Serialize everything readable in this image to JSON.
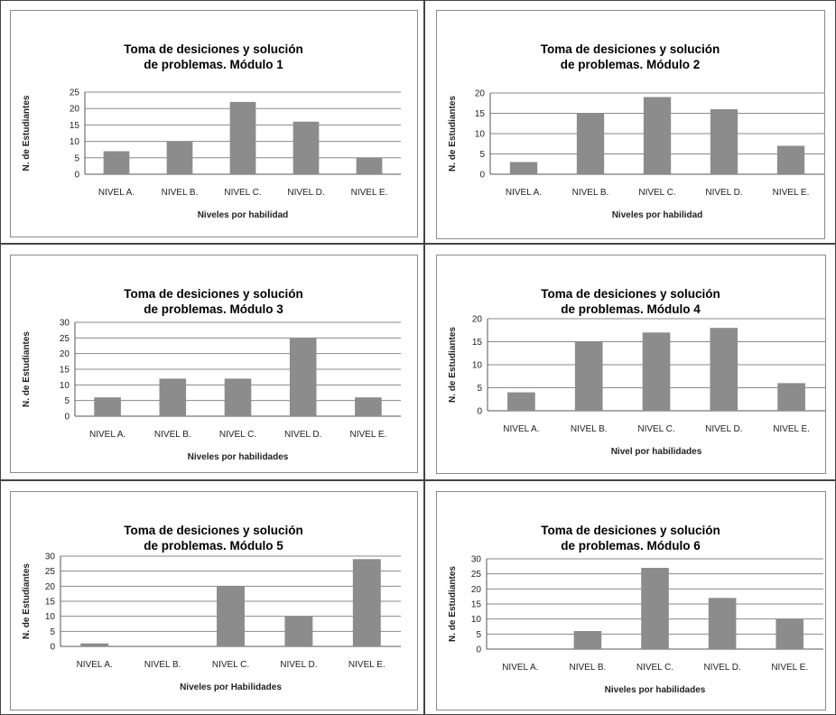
{
  "chart_data": [
    {
      "type": "bar",
      "title": [
        "Toma de desiciones y solución",
        "de problemas.  Módulo 1"
      ],
      "ylabel": "N. de Estudiantes",
      "xlabel": "Niveles por habilidad",
      "categories": [
        "NIVEL A.",
        "NIVEL B.",
        "NIVEL C.",
        "NIVEL D.",
        "NIVEL E."
      ],
      "values": [
        7,
        10,
        22,
        16,
        5
      ],
      "ylim": [
        0,
        25
      ],
      "yticks": [
        0,
        5,
        10,
        15,
        20,
        25
      ],
      "grid": true,
      "bar_color": "#8c8c8c"
    },
    {
      "type": "bar",
      "title": [
        "Toma de desiciones y solución",
        "de problemas. Módulo 2"
      ],
      "ylabel": "N. de Estudiantes",
      "xlabel": "Niveles por habilidad",
      "categories": [
        "NIVEL A.",
        "NIVEL B.",
        "NIVEL C.",
        "NIVEL D.",
        "NIVEL E."
      ],
      "values": [
        3,
        15,
        19,
        16,
        7
      ],
      "ylim": [
        0,
        20
      ],
      "yticks": [
        0,
        5,
        10,
        15,
        20
      ],
      "grid": true,
      "bar_color": "#8c8c8c"
    },
    {
      "type": "bar",
      "title": [
        "Toma de desiciones y solución",
        "de problemas. Módulo 3"
      ],
      "ylabel": "N. de Estudiantes",
      "xlabel": "Niveles por habilidades",
      "categories": [
        "NIVEL A.",
        "NIVEL B.",
        "NIVEL C.",
        "NIVEL D.",
        "NIVEL E."
      ],
      "values": [
        6,
        12,
        12,
        25,
        6
      ],
      "ylim": [
        0,
        30
      ],
      "yticks": [
        0,
        5,
        10,
        15,
        20,
        25,
        30
      ],
      "grid": true,
      "bar_color": "#8c8c8c"
    },
    {
      "type": "bar",
      "title": [
        "Toma de desiciones y solución",
        "de problemas. Módulo 4"
      ],
      "ylabel": "N. de Estudiantes",
      "xlabel": "Nivel por habilidades",
      "categories": [
        "NIVEL A.",
        "NIVEL B.",
        "NIVEL C.",
        "NIVEL D.",
        "NIVEL E."
      ],
      "values": [
        4,
        15,
        17,
        18,
        6
      ],
      "ylim": [
        0,
        20
      ],
      "yticks": [
        0,
        5,
        10,
        15,
        20
      ],
      "grid": true,
      "bar_color": "#8c8c8c"
    },
    {
      "type": "bar",
      "title": [
        "Toma de desiciones y solución",
        "de problemas. Módulo 5"
      ],
      "ylabel": "N. de Estudiantes",
      "xlabel": "Niveles por Habilidades",
      "categories": [
        "NIVEL A.",
        "NIVEL B.",
        "NIVEL C.",
        "NIVEL D.",
        "NIVEL E."
      ],
      "values": [
        1,
        0,
        20,
        10,
        29
      ],
      "ylim": [
        0,
        30
      ],
      "yticks": [
        0,
        5,
        10,
        15,
        20,
        25,
        30
      ],
      "grid": true,
      "bar_color": "#8c8c8c"
    },
    {
      "type": "bar",
      "title": [
        "Toma de desiciones y solución",
        "de problemas. Módulo 6"
      ],
      "ylabel": "N. de Estudiantes",
      "xlabel": "Niveles por habilidades",
      "categories": [
        "NIVEL A.",
        "NIVEL B.",
        "NIVEL C.",
        "NIVEL D.",
        "NIVEL E."
      ],
      "values": [
        0,
        6,
        27,
        17,
        10
      ],
      "ylim": [
        0,
        30
      ],
      "yticks": [
        0,
        5,
        10,
        15,
        20,
        25,
        30
      ],
      "grid": true,
      "bar_color": "#8c8c8c"
    }
  ]
}
